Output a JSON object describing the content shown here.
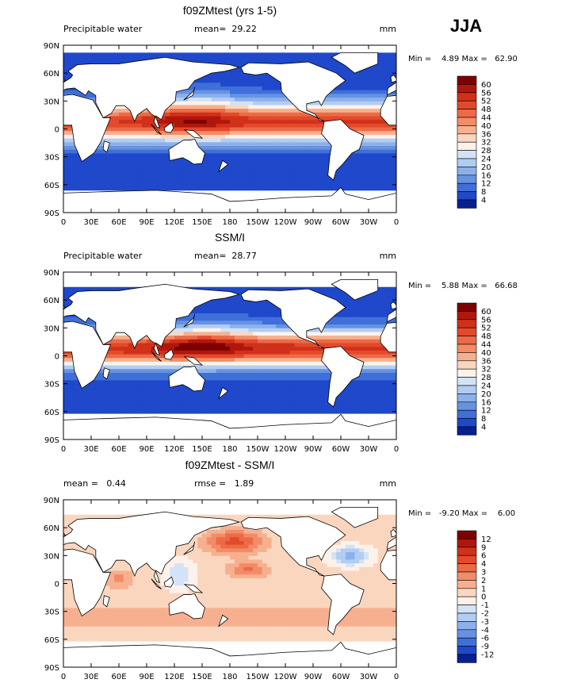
{
  "season": "JJA",
  "lon_labels": [
    "0",
    "30E",
    "60E",
    "90E",
    "120E",
    "150E",
    "180",
    "150W",
    "120W",
    "90W",
    "60W",
    "30W",
    "0"
  ],
  "lat_labels": [
    "90N",
    "60N",
    "30N",
    "0",
    "30S",
    "60S",
    "90S"
  ],
  "panels": [
    {
      "title": "f09ZMtest (yrs 1-5)",
      "header": {
        "left": "Precipitable water",
        "center": "mean=  29.22",
        "right": "mm"
      },
      "range": "Min =    4.89 Max =   62.90",
      "colorbar": {
        "levels": [
          60,
          56,
          52,
          48,
          44,
          40,
          36,
          32,
          28,
          24,
          20,
          16,
          12,
          8,
          4
        ],
        "colors": [
          "#7f0000",
          "#b0170c",
          "#d1301a",
          "#e24a2b",
          "#ec6a46",
          "#f28c68",
          "#f7b08f",
          "#fad6bf",
          "#fdf2ea",
          "#d3e3f7",
          "#b2cdf2",
          "#8cb1ea",
          "#6692e2",
          "#3f6fd9",
          "#1f48cb",
          "#0a1f8f"
        ]
      }
    },
    {
      "title": "SSM/I",
      "header": {
        "left": "Precipitable water",
        "center": "mean=  28.77",
        "right": "mm"
      },
      "range": "Min =    5.88 Max =   66.68",
      "colorbar": {
        "levels": [
          60,
          56,
          52,
          48,
          44,
          40,
          36,
          32,
          28,
          24,
          20,
          16,
          12,
          8,
          4
        ],
        "colors": [
          "#7f0000",
          "#b0170c",
          "#d1301a",
          "#e24a2b",
          "#ec6a46",
          "#f28c68",
          "#f7b08f",
          "#fad6bf",
          "#fdf2ea",
          "#d3e3f7",
          "#b2cdf2",
          "#8cb1ea",
          "#6692e2",
          "#3f6fd9",
          "#1f48cb",
          "#0a1f8f"
        ]
      }
    },
    {
      "title": "f09ZMtest - SSM/I",
      "header": {
        "left": "mean =   0.44",
        "center": "rmse =   1.89",
        "right": "mm"
      },
      "range": "Min =   -9.20 Max =    6.00",
      "colorbar": {
        "levels": [
          12,
          9,
          6,
          4,
          3,
          2,
          1,
          0,
          -1,
          -2,
          -3,
          -4,
          -6,
          -9,
          -12
        ],
        "colors": [
          "#7f0000",
          "#b0170c",
          "#d1301a",
          "#e24a2b",
          "#ec6a46",
          "#f28c68",
          "#f7b08f",
          "#fad6bf",
          "#fdf2ea",
          "#d3e3f7",
          "#b2cdf2",
          "#8cb1ea",
          "#6692e2",
          "#3f6fd9",
          "#1f48cb",
          "#0a1f8f"
        ]
      }
    }
  ]
}
